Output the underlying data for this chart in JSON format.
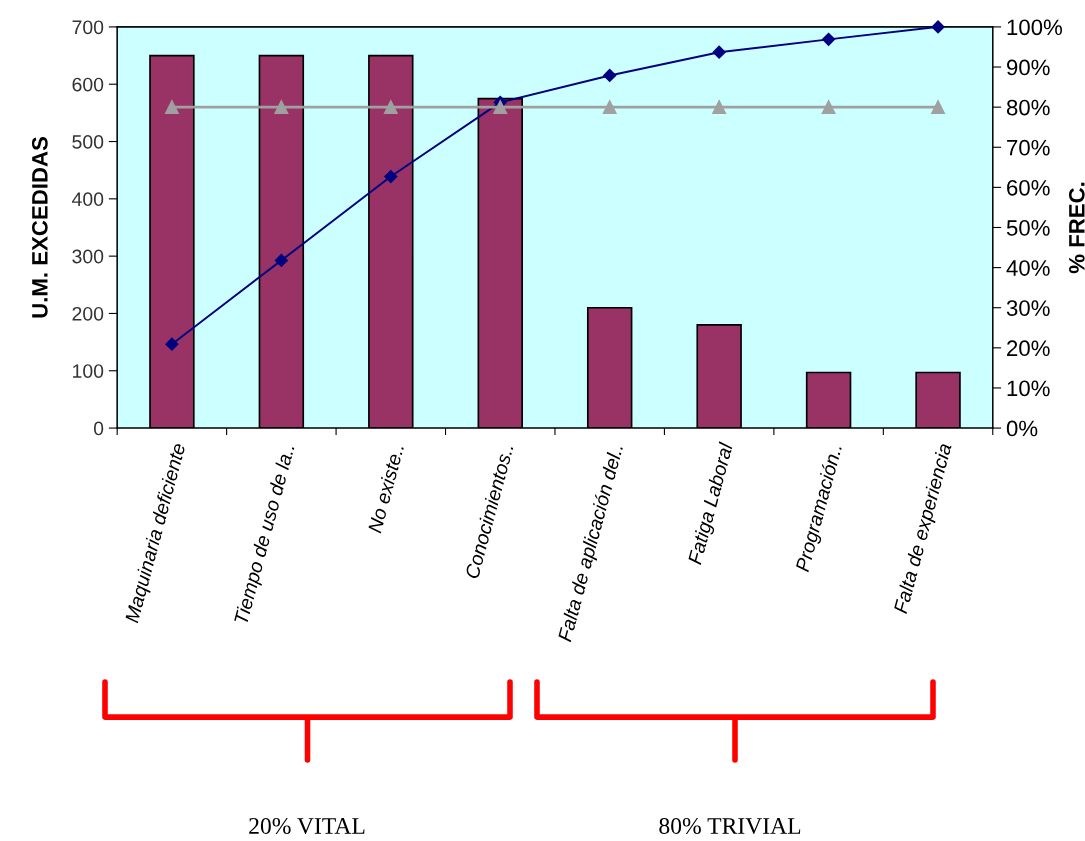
{
  "chart_data": {
    "type": "bar",
    "ylabel": "U.M. EXCEDIDAS",
    "y2label": "% FREC.",
    "categories": [
      "Maquinaria deficiente",
      "Tiempo de uso de la..",
      "No existe..",
      "Conocimientos..",
      "Falta de aplicación del..",
      "Fatiga Laboral",
      "Programación..",
      "Falta de experiencia"
    ],
    "series": [
      {
        "color": "#993366",
        "values": [
          650,
          650,
          650,
          575,
          210,
          180,
          97,
          97
        ]
      },
      {
        "type": "line",
        "axis": "y2",
        "color": "#000080",
        "marker": "diamond",
        "values": [
          20.9,
          41.8,
          62.7,
          81.2,
          87.9,
          93.7,
          96.9,
          100
        ]
      },
      {
        "type": "line",
        "axis": "y2",
        "color": "#a0a0a0",
        "marker": "triangle",
        "values": [
          80,
          80,
          80,
          80,
          80,
          80,
          80,
          80
        ]
      }
    ],
    "ylim": [
      0,
      700
    ],
    "yticks": [
      0,
      100,
      200,
      300,
      400,
      500,
      600,
      700
    ],
    "y2lim": [
      0,
      100
    ],
    "y2ticks": [
      {
        "value": 0,
        "label": "0%"
      },
      {
        "value": 10,
        "label": "10%"
      },
      {
        "value": 20,
        "label": "20%"
      },
      {
        "value": 30,
        "label": "30%"
      },
      {
        "value": 40,
        "label": "40%"
      },
      {
        "value": 50,
        "label": "50%"
      },
      {
        "value": 60,
        "label": "60%"
      },
      {
        "value": 70,
        "label": "70%"
      },
      {
        "value": 80,
        "label": "80%"
      },
      {
        "value": 90,
        "label": "90%"
      },
      {
        "value": 100,
        "label": "100%"
      }
    ],
    "grid": false,
    "legend": false,
    "annotations": [
      "20% VITAL",
      "80% TRIVIAL"
    ]
  }
}
